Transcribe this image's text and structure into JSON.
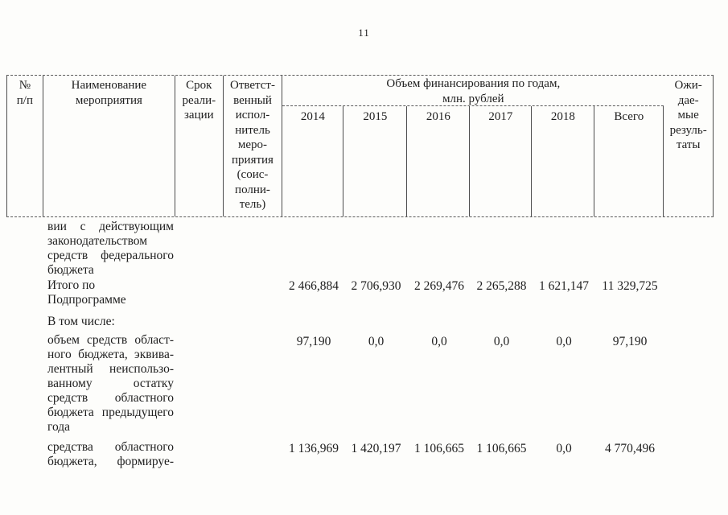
{
  "page": {
    "number": "11"
  },
  "table": {
    "header": {
      "col_no": {
        "lines": [
          "№",
          "п/п"
        ]
      },
      "col_name": {
        "lines": [
          "Наименование",
          "мероприятия"
        ]
      },
      "col_term": {
        "lines": [
          "Срок",
          "реали-",
          "зации"
        ]
      },
      "col_executor": {
        "lines": [
          "Ответст-",
          "венный",
          "испол-",
          "нитель",
          "меро-",
          "приятия",
          "(соис-",
          "полни-",
          "тель)"
        ]
      },
      "finance_group": {
        "title_lines": [
          "Объем финансирования по годам,",
          "млн. рублей"
        ],
        "years": [
          "2014",
          "2015",
          "2016",
          "2017",
          "2018",
          "Всего"
        ]
      },
      "col_expected": {
        "lines": [
          "Ожи-",
          "дае-",
          "мые",
          "резуль-",
          "таты"
        ]
      }
    },
    "rows": [
      {
        "name_lines": [
          "вии с действующим",
          "законодательством",
          "средств федерального",
          "бюджета"
        ],
        "values": []
      },
      {
        "name_lines": [
          "Итого по",
          "Подпрограмме"
        ],
        "values": [
          "2 466,884",
          "2 706,930",
          "2 269,476",
          "2 265,288",
          "1 621,147",
          "11 329,725"
        ]
      },
      {
        "name_lines": [
          "В том числе:"
        ],
        "values": []
      },
      {
        "name_lines": [
          "объем средств област-",
          "ного бюджета, эквива-",
          "лентный неиспользо-",
          "ванному остатку",
          "средств областного",
          "бюджета предыдущего",
          "года"
        ],
        "values": [
          "97,190",
          "0,0",
          "0,0",
          "0,0",
          "0,0",
          "97,190"
        ]
      },
      {
        "name_lines": [
          "средства областного",
          "бюджета, формируе-"
        ],
        "values": [
          "1 136,969",
          "1 420,197",
          "1 106,665",
          "1 106,665",
          "0,0",
          "4 770,496"
        ]
      }
    ]
  }
}
